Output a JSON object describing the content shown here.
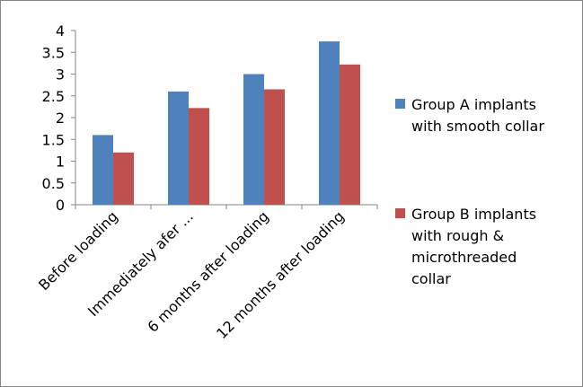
{
  "chart_data": {
    "type": "bar",
    "title": "",
    "xlabel": "",
    "ylabel": "",
    "categories": [
      "Before loading",
      "Immediately afer ...",
      "6 months after loading",
      "12 months after loading"
    ],
    "series": [
      {
        "name": "Group A implants with smooth collar",
        "values": [
          1.6,
          2.6,
          3.0,
          3.75
        ],
        "color": "#4f81bd",
        "legend_lines": [
          "Group A implants",
          "with smooth collar"
        ]
      },
      {
        "name": "Group B implants with rough & microthreaded collar",
        "values": [
          1.2,
          2.22,
          2.65,
          3.22
        ],
        "color": "#c0504d",
        "legend_lines": [
          "Group B implants",
          "with rough &",
          "microthreaded",
          "collar"
        ]
      }
    ],
    "ylim": [
      0,
      4
    ],
    "yticks": [
      "0",
      "0.5",
      "1",
      "1.5",
      "2",
      "2.5",
      "3",
      "3.5",
      "4"
    ],
    "grid": false,
    "legend_position": "right"
  }
}
